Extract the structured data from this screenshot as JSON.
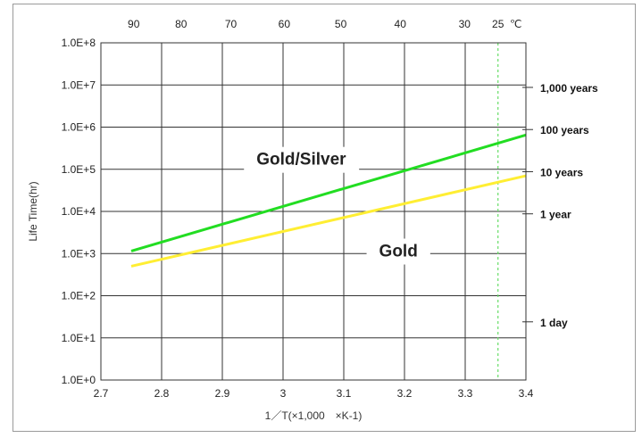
{
  "chart_data": {
    "type": "line",
    "ylabel": "Life Time(hr)",
    "xlabel": "1／T(×1,000　×K-1)",
    "x_ticks": [
      "2.7",
      "2.8",
      "2.9",
      "3",
      "3.1",
      "3.2",
      "3.3",
      "3.4"
    ],
    "xlim": [
      2.7,
      3.4
    ],
    "y_scale": "log",
    "ylim": [
      1,
      100000000
    ],
    "y_ticks": [
      "1.0E+0",
      "1.0E+1",
      "1.0E+2",
      "1.0E+3",
      "1.0E+4",
      "1.0E+5",
      "1.0E+6",
      "1.0E+7",
      "1.0E+8"
    ],
    "top_axis": {
      "ticks": [
        {
          "label": "90",
          "x": 2.754
        },
        {
          "label": "80",
          "x": 2.832
        },
        {
          "label": "70",
          "x": 2.914
        },
        {
          "label": "60",
          "x": 3.002
        },
        {
          "label": "50",
          "x": 3.095
        },
        {
          "label": "40",
          "x": 3.193
        },
        {
          "label": "30",
          "x": 3.299
        },
        {
          "label": "25",
          "x": 3.354
        }
      ],
      "unit": "℃"
    },
    "right_axis_labels": [
      {
        "label": "1,000 years",
        "y": 8760000
      },
      {
        "label": "100 years",
        "y": 876000
      },
      {
        "label": "10 years",
        "y": 87600
      },
      {
        "label": "1 year",
        "y": 8760
      },
      {
        "label": "1 day",
        "y": 24
      }
    ],
    "reference_line": {
      "x": 3.354,
      "color": "#66dd66"
    },
    "grid": true,
    "series": [
      {
        "name": "Gold/Silver",
        "color": "#22dd22",
        "label_color": "#ee1111",
        "x": [
          2.75,
          3.4
        ],
        "y": [
          1150,
          650000
        ],
        "label_x": 3.03,
        "label_y": 180000
      },
      {
        "name": "Gold",
        "color": "#ffee33",
        "label_color": "#111111",
        "x": [
          2.75,
          3.4
        ],
        "y": [
          500,
          70000
        ],
        "label_x": 3.19,
        "label_y": 1200
      }
    ]
  }
}
